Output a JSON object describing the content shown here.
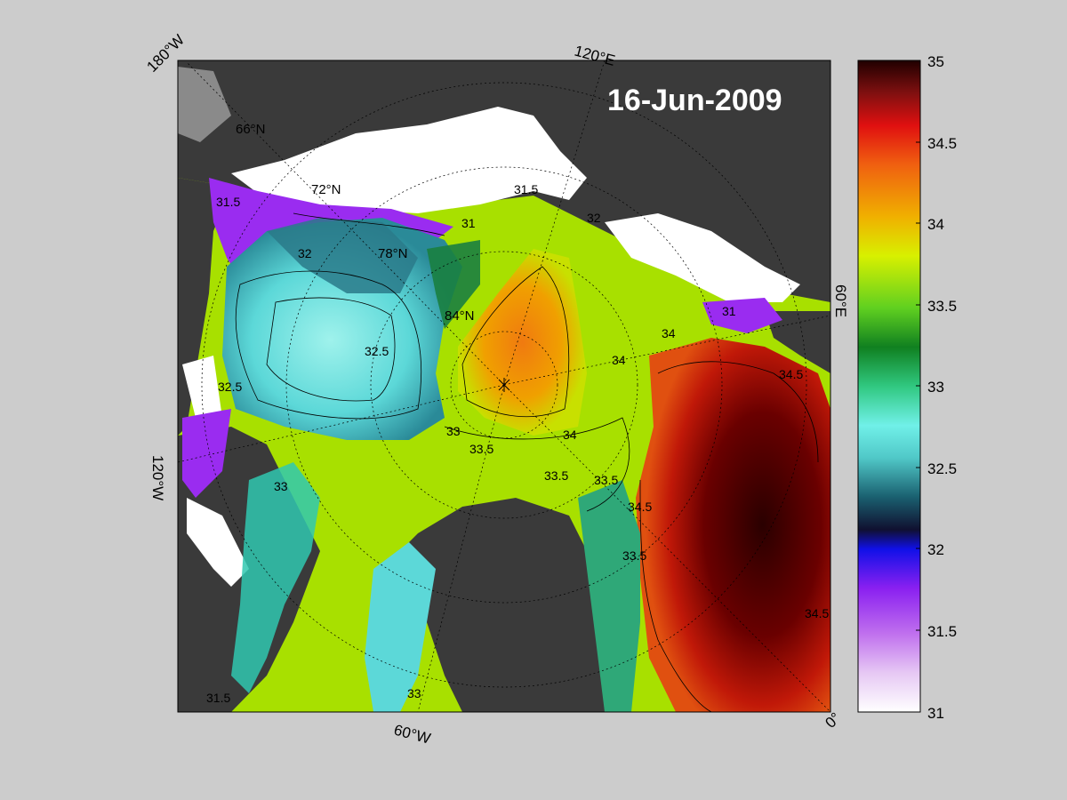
{
  "date_label": "16-Jun-2009",
  "longitude_labels": [
    "180°W",
    "120°E",
    "60°E",
    "0°",
    "60°W",
    "120°W"
  ],
  "latitude_labels": [
    "66°N",
    "72°N",
    "78°N",
    "84°N"
  ],
  "colorbar": {
    "ticks": [
      "35",
      "34.5",
      "34",
      "33.5",
      "33",
      "32.5",
      "32",
      "31.5",
      "31"
    ],
    "range": [
      31,
      35
    ]
  },
  "contour_labels": [
    "31",
    "31.5",
    "32",
    "32.5",
    "33",
    "33.5",
    "34",
    "34.5",
    "34.5",
    "33.5",
    "33",
    "33.5",
    "34",
    "32.5",
    "31.5",
    "32",
    "33",
    "31",
    "31.5",
    "34",
    "34.5",
    "33.5"
  ],
  "colors": {
    "background": "#cccccc",
    "land": "#3a3a3a",
    "ice": "#ffffff",
    "land_shadow": "#8a8a8a"
  }
}
